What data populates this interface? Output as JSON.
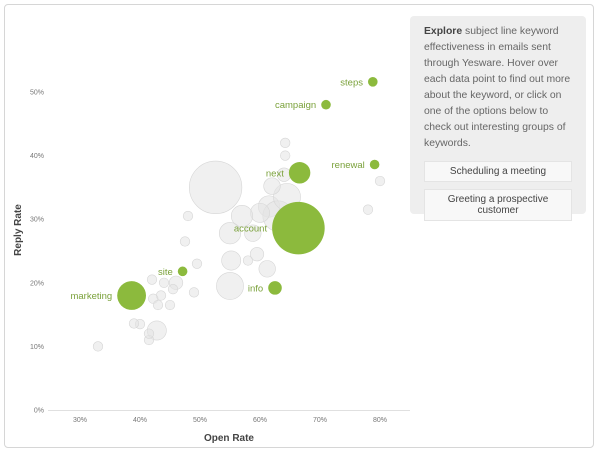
{
  "chart_data": {
    "type": "scatter",
    "xlabel": "Open Rate",
    "ylabel": "Reply Rate",
    "xlim": [
      25,
      85
    ],
    "ylim": [
      0,
      55
    ],
    "x_ticks": [
      30,
      40,
      50,
      60,
      70,
      80
    ],
    "y_ticks": [
      0,
      10,
      20,
      30,
      40,
      50
    ],
    "x_tick_labels": [
      "30%",
      "40%",
      "50%",
      "60%",
      "70%",
      "80%"
    ],
    "y_tick_labels": [
      "0%",
      "10%",
      "20%",
      "30%",
      "40%",
      "50%"
    ],
    "highlight_color": "#8cba3d",
    "background_color": "#e4e4e4",
    "highlighted": [
      {
        "label": "steps",
        "x": 78.8,
        "y": 51.6,
        "size": 1
      },
      {
        "label": "campaign",
        "x": 71.0,
        "y": 48.0,
        "size": 1
      },
      {
        "label": "renewal",
        "x": 79.1,
        "y": 38.6,
        "size": 1
      },
      {
        "label": "next",
        "x": 66.6,
        "y": 37.3,
        "size": 5
      },
      {
        "label": "account",
        "x": 66.4,
        "y": 28.6,
        "size": 30
      },
      {
        "label": "site",
        "x": 47.1,
        "y": 21.8,
        "size": 1
      },
      {
        "label": "info",
        "x": 62.5,
        "y": 19.2,
        "size": 2
      },
      {
        "label": "marketing",
        "x": 38.6,
        "y": 18.0,
        "size": 9
      }
    ],
    "background_points": [
      {
        "x": 52.6,
        "y": 35.0,
        "size": 30
      },
      {
        "x": 61.5,
        "y": 32.0,
        "size": 5
      },
      {
        "x": 63.0,
        "y": 30.5,
        "size": 10
      },
      {
        "x": 64.5,
        "y": 33.5,
        "size": 8
      },
      {
        "x": 60.0,
        "y": 31.0,
        "size": 4
      },
      {
        "x": 57.0,
        "y": 30.5,
        "size": 5
      },
      {
        "x": 58.8,
        "y": 27.8,
        "size": 3
      },
      {
        "x": 55.0,
        "y": 27.8,
        "size": 5
      },
      {
        "x": 62.0,
        "y": 35.2,
        "size": 3
      },
      {
        "x": 64.0,
        "y": 37.0,
        "size": 2
      },
      {
        "x": 64.2,
        "y": 40.0,
        "size": 1
      },
      {
        "x": 64.2,
        "y": 42.0,
        "size": 1
      },
      {
        "x": 65.0,
        "y": 26.0,
        "size": 2
      },
      {
        "x": 58.0,
        "y": 23.5,
        "size": 1
      },
      {
        "x": 61.2,
        "y": 22.2,
        "size": 3
      },
      {
        "x": 55.2,
        "y": 23.5,
        "size": 4
      },
      {
        "x": 55.0,
        "y": 19.5,
        "size": 8
      },
      {
        "x": 59.5,
        "y": 24.5,
        "size": 2
      },
      {
        "x": 48.0,
        "y": 30.5,
        "size": 1
      },
      {
        "x": 47.5,
        "y": 26.5,
        "size": 1
      },
      {
        "x": 49.5,
        "y": 23.0,
        "size": 1
      },
      {
        "x": 46.0,
        "y": 20.0,
        "size": 2
      },
      {
        "x": 44.0,
        "y": 20.0,
        "size": 1
      },
      {
        "x": 45.5,
        "y": 19.0,
        "size": 1
      },
      {
        "x": 43.5,
        "y": 18.0,
        "size": 1
      },
      {
        "x": 42.2,
        "y": 17.5,
        "size": 1
      },
      {
        "x": 43.0,
        "y": 16.5,
        "size": 1
      },
      {
        "x": 42.0,
        "y": 20.5,
        "size": 1
      },
      {
        "x": 49.0,
        "y": 18.5,
        "size": 1
      },
      {
        "x": 45.0,
        "y": 16.5,
        "size": 1
      },
      {
        "x": 42.8,
        "y": 12.5,
        "size": 4
      },
      {
        "x": 41.5,
        "y": 11.0,
        "size": 1
      },
      {
        "x": 41.5,
        "y": 12.0,
        "size": 1
      },
      {
        "x": 40.0,
        "y": 13.5,
        "size": 1
      },
      {
        "x": 39.0,
        "y": 13.6,
        "size": 1
      },
      {
        "x": 33.0,
        "y": 10.0,
        "size": 1
      },
      {
        "x": 78.0,
        "y": 31.5,
        "size": 1
      },
      {
        "x": 80.0,
        "y": 36.0,
        "size": 1
      }
    ]
  },
  "panel": {
    "lead": "Explore",
    "text": " subject line keyword effectiveness in emails sent through Yesware. Hover over each data point to find out more about the keyword, or click on one of the options below to check out interesting groups of keywords.",
    "options": [
      "Scheduling a meeting",
      "Greeting a prospective customer"
    ]
  }
}
